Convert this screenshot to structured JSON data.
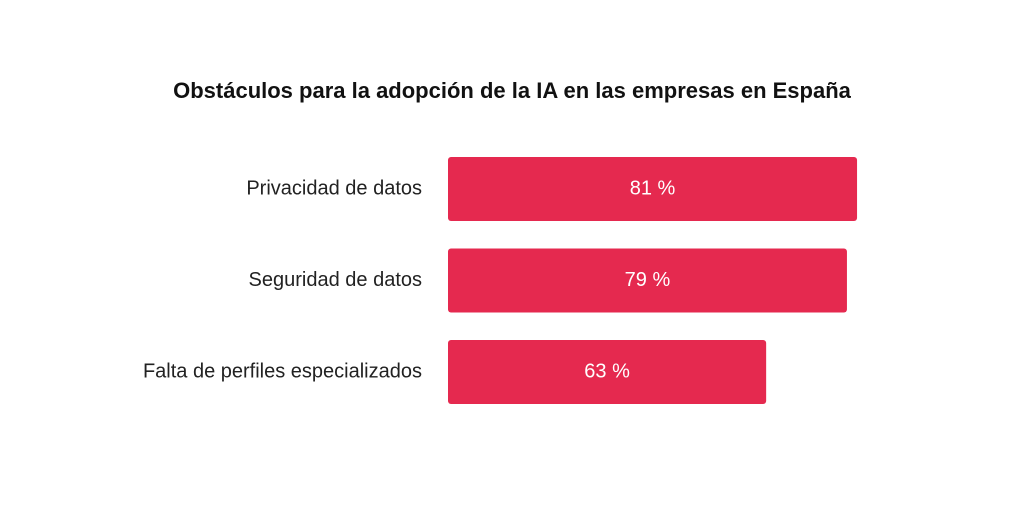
{
  "chart_data": {
    "type": "bar",
    "orientation": "horizontal",
    "title": "Obstáculos para la adopción de la IA en las empresas en España",
    "categories": [
      "Privacidad de datos",
      "Seguridad de datos",
      "Falta de perfiles especializados"
    ],
    "values": [
      81,
      79,
      63
    ],
    "value_labels": [
      "81 %",
      "79 %",
      "63 %"
    ],
    "color": "#e5294f"
  }
}
